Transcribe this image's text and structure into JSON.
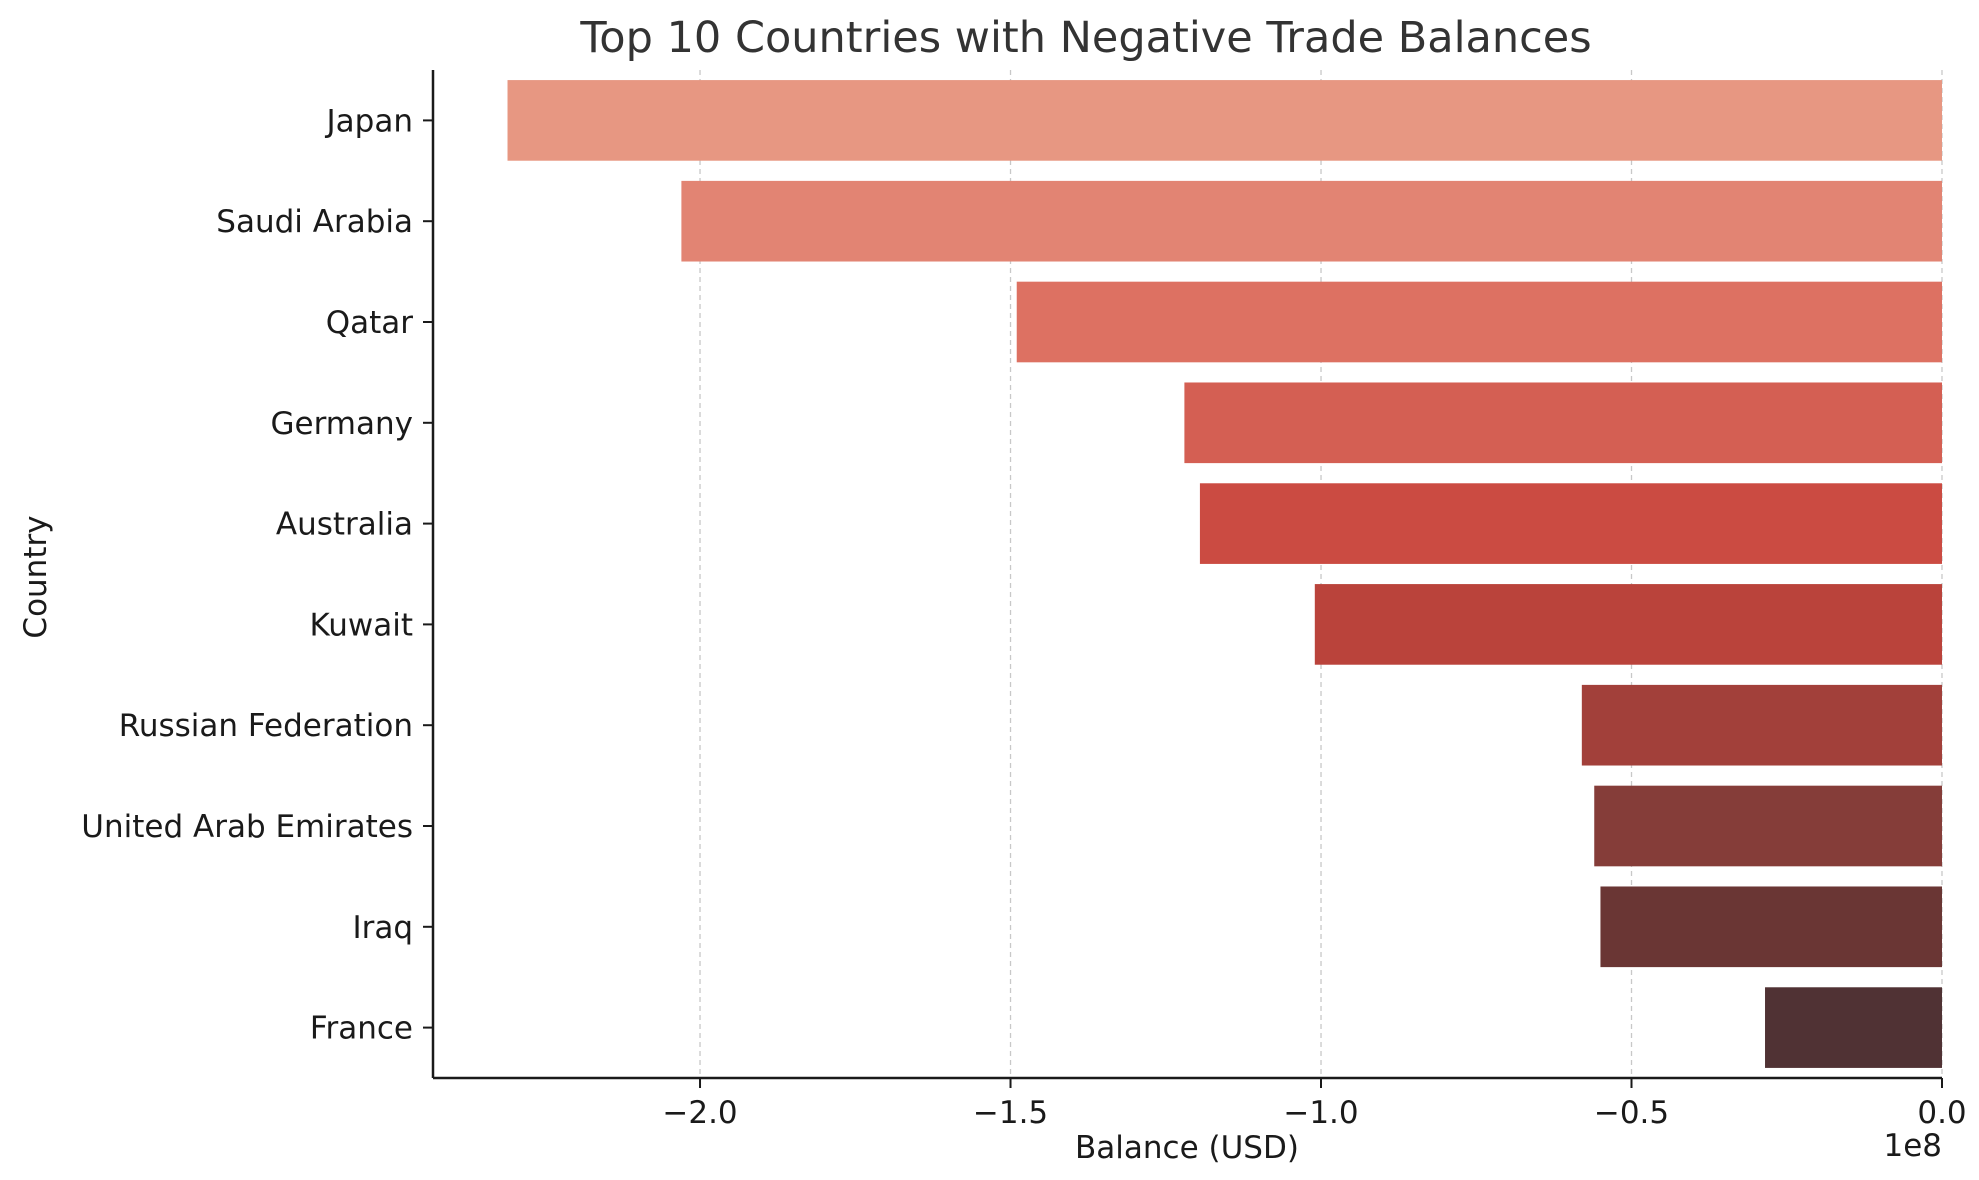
{
  "chart_data": {
    "type": "bar",
    "orientation": "horizontal",
    "title": "Top 10 Countries with Negative Trade Balances",
    "xlabel": "Balance (USD)",
    "ylabel": "Country",
    "x_scale_label": "1e8",
    "xlim": [
      -2.43,
      0.0
    ],
    "x_ticks": [
      -2.0,
      -1.5,
      -1.0,
      -0.5,
      0.0
    ],
    "x_tick_labels": [
      "−2.0",
      "−1.5",
      "−1.0",
      "−0.5",
      "0.0"
    ],
    "grid": "vertical dashed",
    "categories": [
      "Japan",
      "Saudi Arabia",
      "Qatar",
      "Germany",
      "Australia",
      "Kuwait",
      "Russian Federation",
      "United Arab Emirates",
      "Iraq",
      "France"
    ],
    "values": [
      -231000000,
      -203000000,
      -149000000,
      -122000000,
      -119500000,
      -101000000,
      -58000000,
      -56000000,
      -55000000,
      -28500000
    ],
    "colors": [
      "#e79782",
      "#e28473",
      "#dd7162",
      "#d45f53",
      "#cb4b42",
      "#ba433b",
      "#a2403a",
      "#853d39",
      "#6a3634",
      "#503234"
    ]
  }
}
